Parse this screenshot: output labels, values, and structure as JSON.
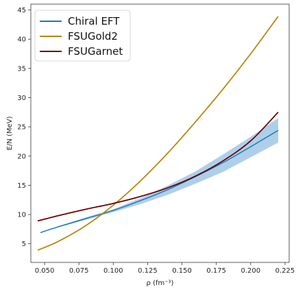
{
  "chart_data": {
    "type": "line",
    "xlabel": "ρ (fm⁻³)",
    "ylabel": "E/N (MeV)",
    "xlim": [
      0.04,
      0.228
    ],
    "ylim": [
      1.8,
      46
    ],
    "xticks": [
      0.05,
      0.075,
      0.1,
      0.125,
      0.15,
      0.175,
      0.2,
      0.225
    ],
    "xtick_labels": [
      "0.050",
      "0.075",
      "0.100",
      "0.125",
      "0.150",
      "0.175",
      "0.200",
      "0.225"
    ],
    "yticks": [
      5,
      10,
      15,
      20,
      25,
      30,
      35,
      40,
      45
    ],
    "ytick_labels": [
      "5",
      "10",
      "15",
      "20",
      "25",
      "30",
      "35",
      "40",
      "45"
    ],
    "legend_position": "top-left",
    "series": [
      {
        "name": "Chiral EFT",
        "color": "#1f77b4",
        "x": [
          0.047,
          0.06,
          0.08,
          0.1,
          0.12,
          0.14,
          0.16,
          0.18,
          0.2,
          0.22
        ],
        "y": [
          6.9,
          7.9,
          9.3,
          10.7,
          12.4,
          14.3,
          16.5,
          18.9,
          21.6,
          24.4
        ],
        "band_lower": [
          6.9,
          7.8,
          9.1,
          10.4,
          11.8,
          13.4,
          15.3,
          17.3,
          19.8,
          22.3
        ],
        "band_upper": [
          6.9,
          8.0,
          9.5,
          10.9,
          12.8,
          15.0,
          17.4,
          20.3,
          23.3,
          26.5
        ],
        "band_color": "#aecfea"
      },
      {
        "name": "FSUGold2",
        "color": "#b8860b",
        "x": [
          0.045,
          0.06,
          0.08,
          0.1,
          0.12,
          0.14,
          0.16,
          0.18,
          0.2,
          0.22
        ],
        "y": [
          3.9,
          5.4,
          8.1,
          11.6,
          15.8,
          20.6,
          25.9,
          31.5,
          37.5,
          43.9
        ],
        "band_color": ""
      },
      {
        "name": "FSUGarnet",
        "color": "#6b0000",
        "x": [
          0.045,
          0.06,
          0.08,
          0.1,
          0.12,
          0.14,
          0.16,
          0.18,
          0.2,
          0.22
        ],
        "y": [
          8.9,
          9.8,
          10.9,
          11.9,
          13.1,
          14.6,
          16.6,
          19.2,
          22.6,
          27.5
        ],
        "band_color": ""
      }
    ]
  }
}
